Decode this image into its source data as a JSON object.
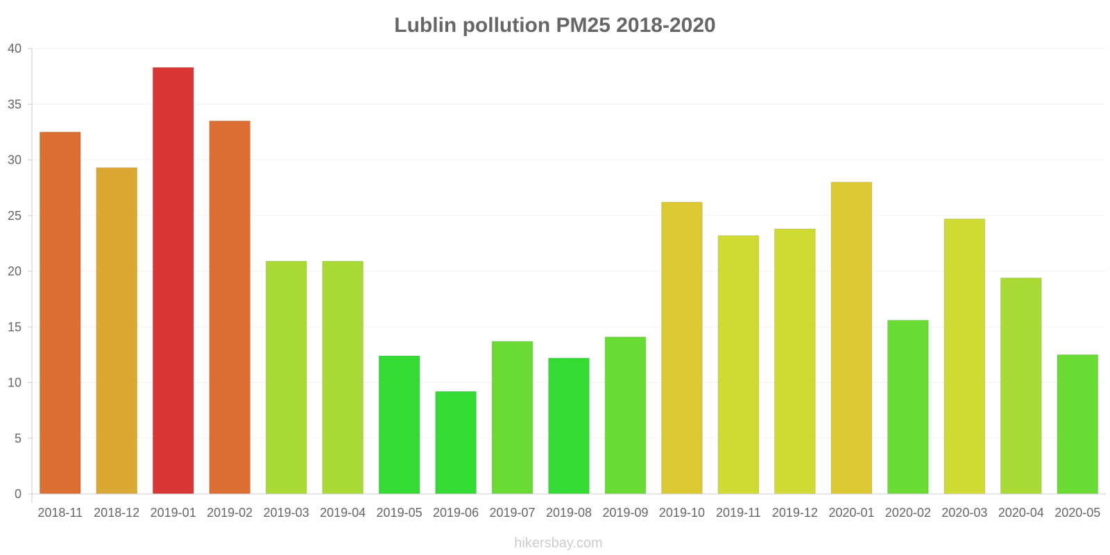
{
  "chart_data": {
    "type": "bar",
    "title": "Lublin pollution PM25 2018-2020",
    "xlabel": "",
    "ylabel": "",
    "ylim": [
      0,
      40
    ],
    "yticks": [
      "0",
      "5",
      "10",
      "15",
      "20",
      "25",
      "30",
      "35",
      "40"
    ],
    "categories": [
      "2018-11",
      "2018-12",
      "2019-01",
      "2019-02",
      "2019-03",
      "2019-04",
      "2019-05",
      "2019-06",
      "2019-07",
      "2019-08",
      "2019-09",
      "2019-10",
      "2019-11",
      "2019-12",
      "2020-01",
      "2020-02",
      "2020-03",
      "2020-04",
      "2020-05"
    ],
    "values": [
      32.5,
      29.3,
      38.3,
      33.5,
      20.9,
      20.9,
      12.4,
      9.2,
      13.7,
      12.2,
      14.1,
      26.2,
      23.2,
      23.8,
      28.0,
      15.6,
      24.7,
      19.4,
      12.5
    ],
    "colors": [
      "#dd6e33",
      "#dba833",
      "#da3535",
      "#dd6e33",
      "#a9da35",
      "#a9da35",
      "#35db35",
      "#35db35",
      "#6adb35",
      "#35db35",
      "#6adb35",
      "#dbc833",
      "#cfdb33",
      "#cfdb33",
      "#dbc833",
      "#6adb35",
      "#cfdb33",
      "#a9da35",
      "#6adb35"
    ],
    "grid": true,
    "legend": "none"
  },
  "watermark": "hikersbay.com"
}
